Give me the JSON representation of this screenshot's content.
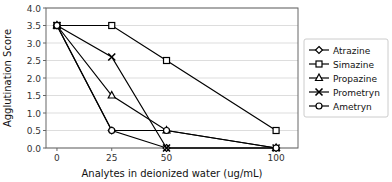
{
  "chart_data": {
    "type": "line",
    "x": [
      0,
      25,
      50,
      100
    ],
    "series": [
      {
        "name": "Atrazine",
        "values": [
          3.5,
          0.5,
          0.0,
          0.0
        ],
        "marker": "diamond"
      },
      {
        "name": "Simazine",
        "values": [
          3.5,
          3.5,
          2.5,
          0.5
        ],
        "marker": "square"
      },
      {
        "name": "Propazine",
        "values": [
          3.5,
          1.5,
          0.5,
          0.0
        ],
        "marker": "triangle"
      },
      {
        "name": "Prometryn",
        "values": [
          3.5,
          2.6,
          0.0,
          0.0
        ],
        "marker": "x"
      },
      {
        "name": "Ametryn",
        "values": [
          3.5,
          0.5,
          0.5,
          0.0
        ],
        "marker": "circle"
      }
    ],
    "color": "black",
    "xlabel": "Analytes in deionized water (ug/mL)",
    "ylabel": "Agglutination Score",
    "xlim": [
      -5,
      110
    ],
    "xticks": [
      0,
      25,
      50,
      100
    ],
    "ylim": [
      0,
      4
    ],
    "yticks": [
      {
        "value": 0,
        "label": "0.0"
      },
      0.5,
      {
        "value": 1,
        "label": "1.0"
      },
      1.5,
      {
        "value": 2,
        "label": "2.0"
      },
      2.5,
      {
        "value": 3,
        "label": "3.0"
      },
      3.5,
      {
        "value": 4,
        "label": "4.0"
      }
    ],
    "grid": true,
    "legend": "right"
  }
}
